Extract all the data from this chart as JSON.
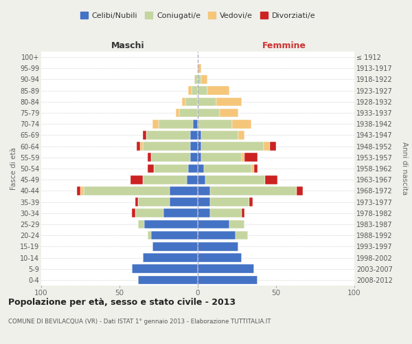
{
  "age_groups": [
    "0-4",
    "5-9",
    "10-14",
    "15-19",
    "20-24",
    "25-29",
    "30-34",
    "35-39",
    "40-44",
    "45-49",
    "50-54",
    "55-59",
    "60-64",
    "65-69",
    "70-74",
    "75-79",
    "80-84",
    "85-89",
    "90-94",
    "95-99",
    "100+"
  ],
  "birth_years": [
    "2008-2012",
    "2003-2007",
    "1998-2002",
    "1993-1997",
    "1988-1992",
    "1983-1987",
    "1978-1982",
    "1973-1977",
    "1968-1972",
    "1963-1967",
    "1958-1962",
    "1953-1957",
    "1948-1952",
    "1943-1947",
    "1938-1942",
    "1933-1937",
    "1928-1932",
    "1923-1927",
    "1918-1922",
    "1913-1917",
    "≤ 1912"
  ],
  "males": {
    "celibi": [
      38,
      42,
      35,
      29,
      30,
      34,
      22,
      18,
      18,
      7,
      6,
      5,
      5,
      5,
      3,
      0,
      0,
      0,
      0,
      0,
      0
    ],
    "coniugati": [
      0,
      0,
      0,
      0,
      2,
      4,
      18,
      20,
      55,
      28,
      22,
      25,
      30,
      28,
      22,
      12,
      8,
      4,
      2,
      0,
      0
    ],
    "vedovi": [
      0,
      0,
      0,
      0,
      0,
      0,
      0,
      0,
      2,
      0,
      0,
      0,
      2,
      0,
      4,
      2,
      2,
      2,
      0,
      0,
      0
    ],
    "divorziati": [
      0,
      0,
      0,
      0,
      0,
      0,
      2,
      2,
      2,
      8,
      4,
      2,
      2,
      2,
      0,
      0,
      0,
      0,
      0,
      0,
      0
    ]
  },
  "females": {
    "nubili": [
      38,
      36,
      28,
      26,
      24,
      20,
      8,
      8,
      8,
      5,
      4,
      2,
      2,
      2,
      0,
      0,
      0,
      0,
      0,
      0,
      0
    ],
    "coniugate": [
      0,
      0,
      0,
      0,
      8,
      10,
      20,
      25,
      55,
      38,
      30,
      26,
      40,
      24,
      22,
      14,
      12,
      6,
      2,
      0,
      0
    ],
    "vedove": [
      0,
      0,
      0,
      0,
      0,
      0,
      0,
      0,
      0,
      0,
      2,
      2,
      4,
      4,
      12,
      12,
      16,
      14,
      4,
      2,
      0
    ],
    "divorziate": [
      0,
      0,
      0,
      0,
      0,
      0,
      2,
      2,
      4,
      8,
      2,
      8,
      4,
      0,
      0,
      0,
      0,
      0,
      0,
      0,
      0
    ]
  },
  "color_celibi": "#4472c4",
  "color_coniugati": "#c5d5a0",
  "color_vedovi": "#f5c67a",
  "color_divorziati": "#cc2222",
  "title": "Popolazione per età, sesso e stato civile - 2013",
  "subtitle": "COMUNE DI BEVILACQUA (VR) - Dati ISTAT 1° gennaio 2013 - Elaborazione TUTTITALIA.IT",
  "label_maschi": "Maschi",
  "label_femmine": "Femmine",
  "ylabel_left": "Fasce di età",
  "ylabel_right": "Anni di nascita",
  "xlim": 100,
  "legend_labels": [
    "Celibi/Nubili",
    "Coniugati/e",
    "Vedovi/e",
    "Divorziati/e"
  ],
  "bg_color": "#f0f0eb",
  "plot_bg": "#ffffff",
  "grid_color": "#cccccc",
  "center_line_color": "#aaaacc"
}
